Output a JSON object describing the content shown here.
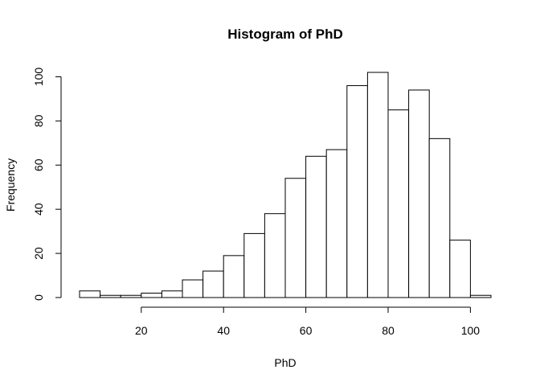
{
  "chart_data": {
    "type": "bar",
    "title": "Histogram of PhD",
    "xlabel": "PhD",
    "ylabel": "Frequency",
    "bins": [
      {
        "start": 5,
        "end": 10,
        "count": 3
      },
      {
        "start": 10,
        "end": 15,
        "count": 1
      },
      {
        "start": 15,
        "end": 20,
        "count": 1
      },
      {
        "start": 20,
        "end": 25,
        "count": 2
      },
      {
        "start": 25,
        "end": 30,
        "count": 3
      },
      {
        "start": 30,
        "end": 35,
        "count": 8
      },
      {
        "start": 35,
        "end": 40,
        "count": 12
      },
      {
        "start": 40,
        "end": 45,
        "count": 19
      },
      {
        "start": 45,
        "end": 50,
        "count": 29
      },
      {
        "start": 50,
        "end": 55,
        "count": 38
      },
      {
        "start": 55,
        "end": 60,
        "count": 54
      },
      {
        "start": 60,
        "end": 65,
        "count": 64
      },
      {
        "start": 65,
        "end": 70,
        "count": 67
      },
      {
        "start": 70,
        "end": 75,
        "count": 96
      },
      {
        "start": 75,
        "end": 80,
        "count": 102
      },
      {
        "start": 80,
        "end": 85,
        "count": 85
      },
      {
        "start": 85,
        "end": 90,
        "count": 94
      },
      {
        "start": 90,
        "end": 95,
        "count": 72
      },
      {
        "start": 95,
        "end": 100,
        "count": 26
      },
      {
        "start": 100,
        "end": 105,
        "count": 1
      }
    ],
    "xticks": [
      20,
      40,
      60,
      80,
      100
    ],
    "yticks": [
      0,
      20,
      40,
      60,
      80,
      100
    ],
    "xlim": [
      5,
      105
    ],
    "ylim": [
      0,
      102
    ],
    "grid": false,
    "bar_fill": "#ffffff",
    "bar_stroke": "#000000"
  }
}
